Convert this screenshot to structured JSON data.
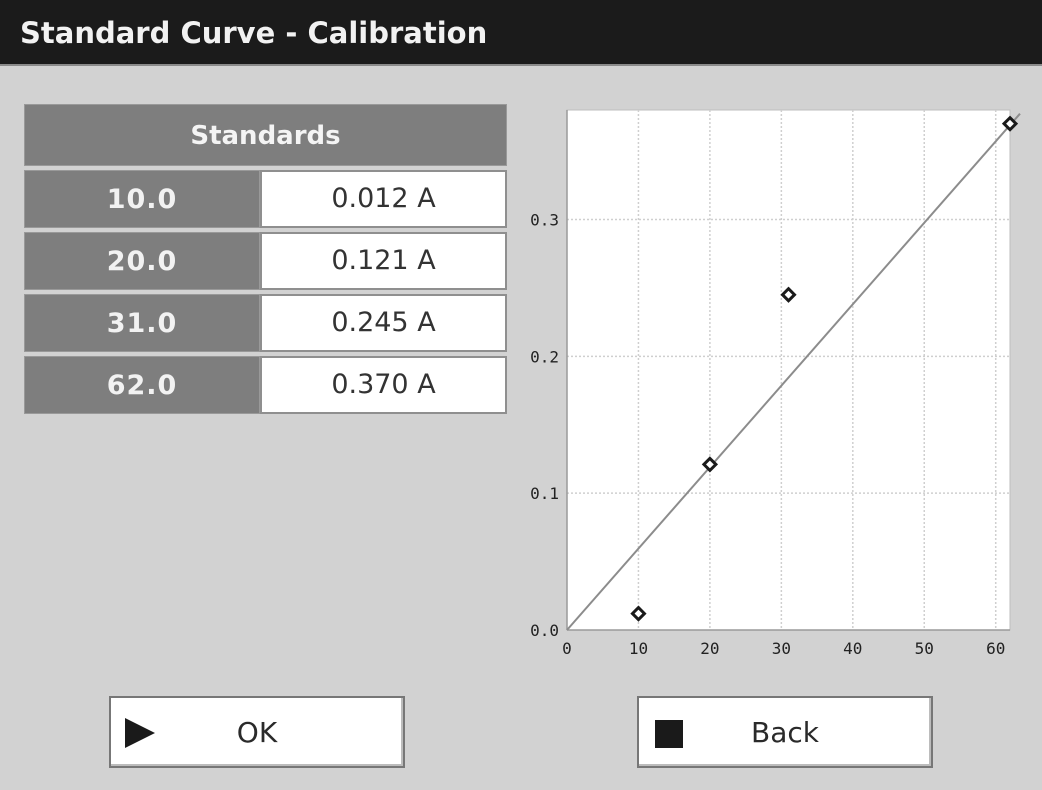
{
  "window": {
    "title": "Standard Curve - Calibration"
  },
  "standards": {
    "header": "Standards",
    "rows": [
      {
        "standard": "10.0",
        "absorbance": "0.012 A"
      },
      {
        "standard": "20.0",
        "absorbance": "0.121 A"
      },
      {
        "standard": "31.0",
        "absorbance": "0.245 A"
      },
      {
        "standard": "62.0",
        "absorbance": "0.370 A"
      }
    ]
  },
  "buttons": {
    "ok_label": "OK",
    "back_label": "Back"
  },
  "icons": {
    "ok": "play-icon",
    "back": "stop-icon"
  },
  "chart_data": {
    "type": "scatter",
    "title": "",
    "xlabel": "",
    "ylabel": "",
    "x": [
      10,
      20,
      31,
      62
    ],
    "y": [
      0.012,
      0.121,
      0.245,
      0.37
    ],
    "fit_line": {
      "x": [
        0,
        62
      ],
      "y": [
        0,
        0.37
      ]
    },
    "xlim": [
      0,
      62
    ],
    "ylim": [
      0,
      0.38
    ],
    "xticks": [
      0,
      10,
      20,
      30,
      40,
      50,
      60
    ],
    "xtick_labels": [
      "0",
      "10",
      "20",
      "30",
      "40",
      "50",
      "60"
    ],
    "yticks": [
      0.0,
      0.1,
      0.2,
      0.3
    ],
    "ytick_labels": [
      "0.0",
      "0.1",
      "0.2",
      "0.3"
    ],
    "grid": true,
    "colors": {
      "marker": "#1a1a1a",
      "line": "#8c8c8c",
      "grid": "#cfcfcf"
    }
  }
}
